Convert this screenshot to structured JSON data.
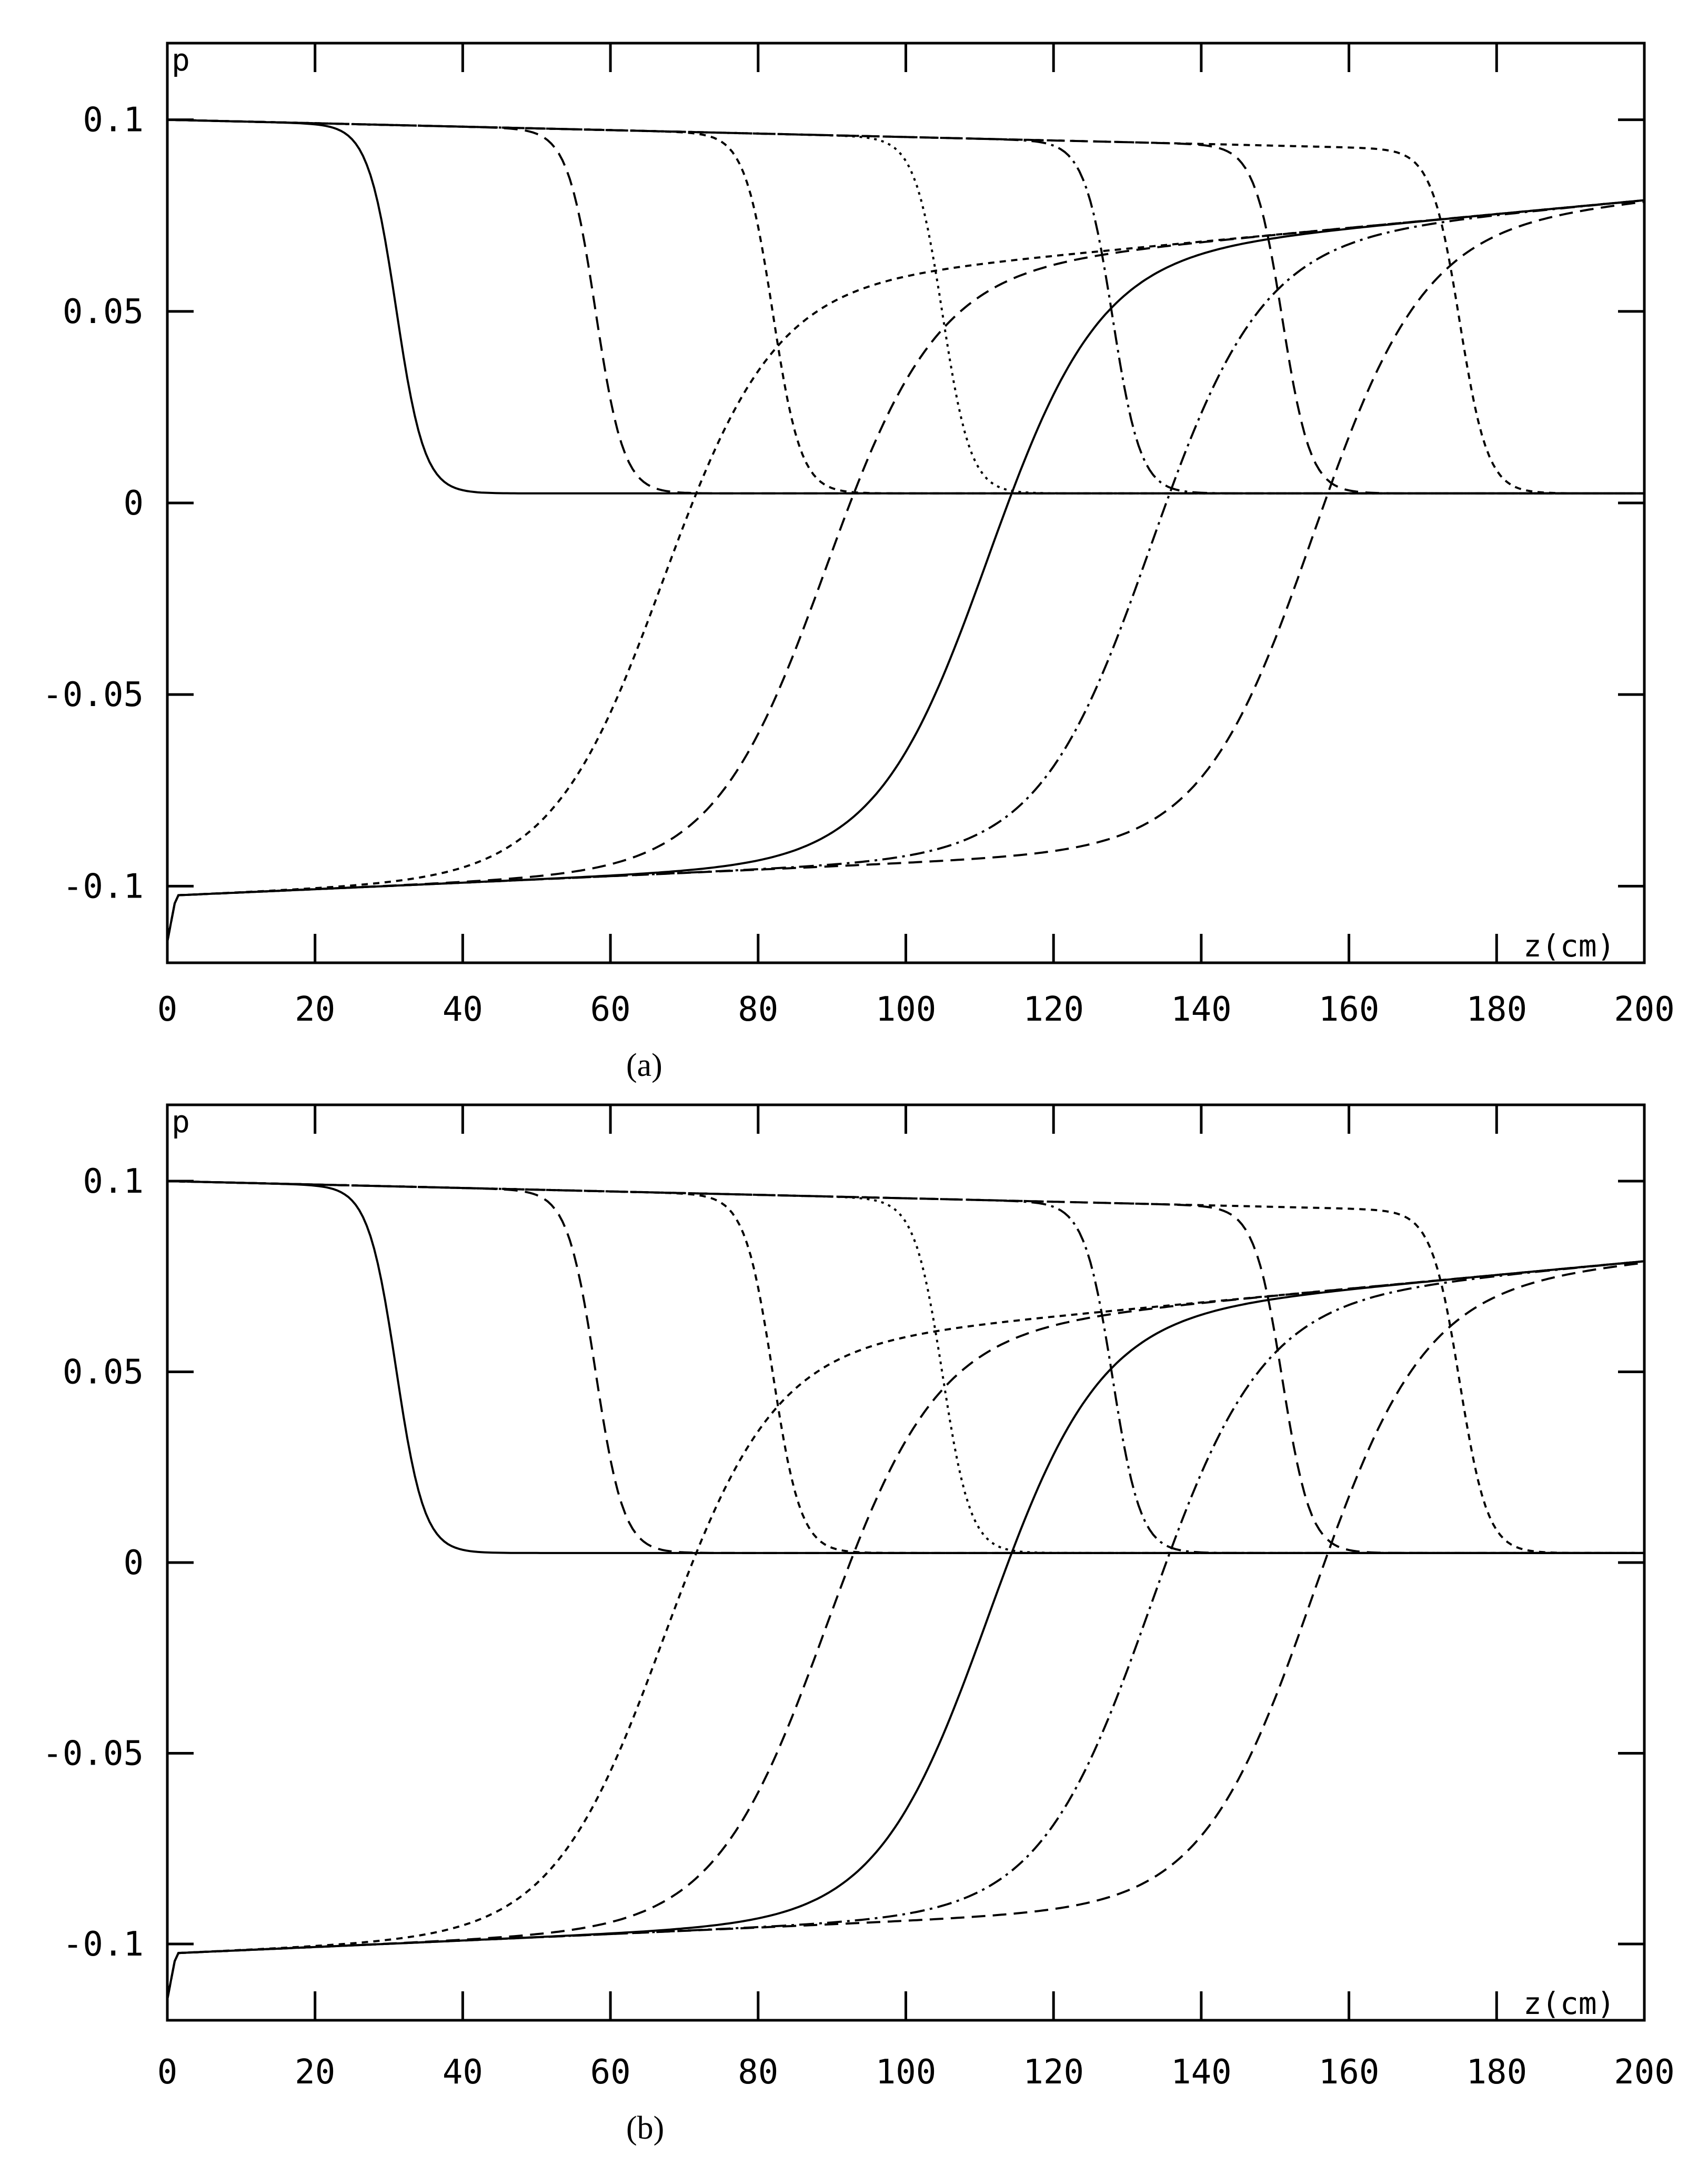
{
  "chart_data": [
    {
      "type": "line",
      "panel_label": "a",
      "ylabel": "p",
      "xlabel": "z(cm)",
      "xlim": [
        0,
        200
      ],
      "ylim": [
        -0.12,
        0.12
      ],
      "xticks": [
        "0",
        "20",
        "40",
        "60",
        "80",
        "100",
        "120",
        "140",
        "160",
        "180",
        "200"
      ],
      "yticks": [
        "0.1",
        "0.05",
        "0",
        "-0.05",
        "-0.1"
      ],
      "series": [
        {
          "name": "front z=31",
          "style": "solid",
          "kind": "front",
          "center": 31
        },
        {
          "name": "front z=58",
          "style": "dash",
          "kind": "front",
          "center": 58
        },
        {
          "name": "front z=82",
          "style": "dash-short",
          "kind": "front",
          "center": 82
        },
        {
          "name": "front z=105",
          "style": "dot",
          "kind": "front",
          "center": 105
        },
        {
          "name": "front z=128",
          "style": "dashdot",
          "kind": "front",
          "center": 128
        },
        {
          "name": "front z=151",
          "style": "dash",
          "kind": "front",
          "center": 151
        },
        {
          "name": "front z=175",
          "style": "dash-short",
          "kind": "front",
          "center": 175
        },
        {
          "name": "wave z=67",
          "style": "dash-short",
          "kind": "wave",
          "center": 67
        },
        {
          "name": "wave z=89",
          "style": "dash",
          "kind": "wave",
          "center": 89
        },
        {
          "name": "wave z=111",
          "style": "solid",
          "kind": "wave",
          "center": 111
        },
        {
          "name": "wave z=133",
          "style": "dashdot",
          "kind": "wave",
          "center": 133
        },
        {
          "name": "wave z=155",
          "style": "dash",
          "kind": "wave",
          "center": 155
        }
      ]
    },
    {
      "type": "line",
      "panel_label": "b",
      "ylabel": "p",
      "xlabel": "z(cm)",
      "xlim": [
        0,
        200
      ],
      "ylim": [
        -0.12,
        0.12
      ],
      "xticks": [
        "0",
        "20",
        "40",
        "60",
        "80",
        "100",
        "120",
        "140",
        "160",
        "180",
        "200"
      ],
      "yticks": [
        "0.1",
        "0.05",
        "0",
        "-0.05",
        "-0.1"
      ],
      "series": [
        {
          "name": "front z=31",
          "style": "solid",
          "kind": "front",
          "center": 31
        },
        {
          "name": "front z=58",
          "style": "dash",
          "kind": "front",
          "center": 58
        },
        {
          "name": "front z=82",
          "style": "dash-short",
          "kind": "front",
          "center": 82
        },
        {
          "name": "front z=105",
          "style": "dot",
          "kind": "front",
          "center": 105
        },
        {
          "name": "front z=128",
          "style": "dashdot",
          "kind": "front",
          "center": 128
        },
        {
          "name": "front z=151",
          "style": "dash",
          "kind": "front",
          "center": 151
        },
        {
          "name": "front z=175",
          "style": "dash-short",
          "kind": "front",
          "center": 175
        },
        {
          "name": "wave z=67",
          "style": "dash-short",
          "kind": "wave",
          "center": 67
        },
        {
          "name": "wave z=89",
          "style": "dash",
          "kind": "wave",
          "center": 89
        },
        {
          "name": "wave z=111",
          "style": "solid",
          "kind": "wave",
          "center": 111
        },
        {
          "name": "wave z=133",
          "style": "dashdot",
          "kind": "wave",
          "center": 133
        },
        {
          "name": "wave z=155",
          "style": "dash",
          "kind": "wave",
          "center": 155
        }
      ]
    }
  ],
  "captions": {
    "a": "(a)",
    "b": "(b)"
  },
  "colors": {
    "line": "#000000",
    "background": "#ffffff"
  }
}
